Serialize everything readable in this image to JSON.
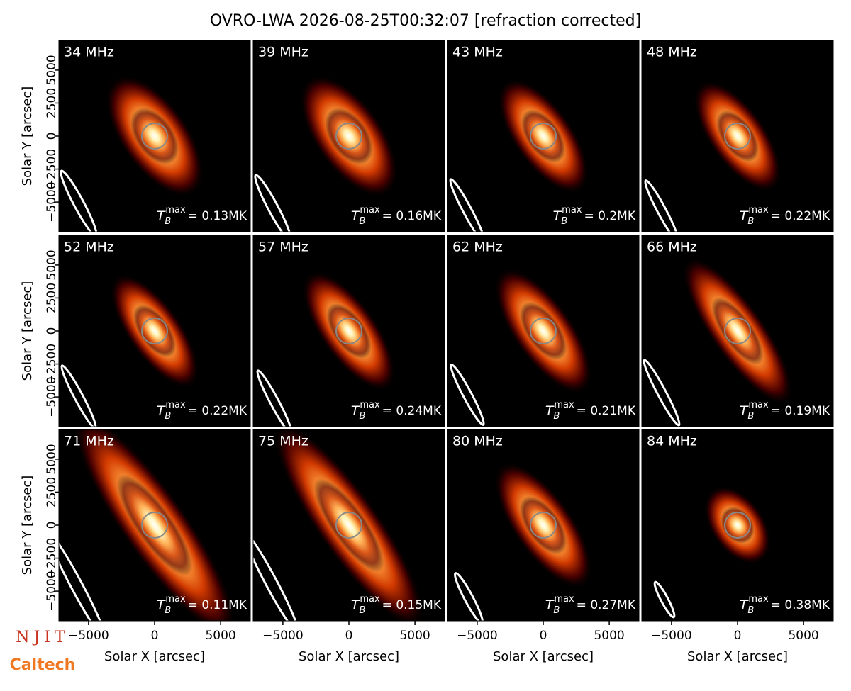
{
  "title": "OVRO-LWA 2026-08-25T00:32:07 [refraction corrected]",
  "logos": [
    "NJIT",
    "Caltech"
  ],
  "chart_data": [
    {
      "type": "image",
      "title": "34 MHz",
      "annotation": {
        "symbol": "T",
        "sub": "B",
        "sup": "max",
        "text": "= 0.13MK"
      },
      "xlim": [
        -7250,
        7250
      ],
      "ylim": [
        -7250,
        7250
      ],
      "ylabel": "Solar Y [arcsec]",
      "yticks": [
        {
          "value": 5000,
          "label": "5000"
        },
        {
          "value": 2500,
          "label": "2500"
        },
        {
          "value": 0,
          "label": "0"
        },
        {
          "value": -2500,
          "label": "−2500"
        },
        {
          "value": -5000,
          "label": "−5000"
        }
      ]
    },
    {
      "type": "image",
      "title": "39 MHz",
      "annotation": {
        "symbol": "T",
        "sub": "B",
        "sup": "max",
        "text": "= 0.16MK"
      },
      "xlim": [
        -7250,
        7250
      ],
      "ylim": [
        -7250,
        7250
      ]
    },
    {
      "type": "image",
      "title": "43 MHz",
      "annotation": {
        "symbol": "T",
        "sub": "B",
        "sup": "max",
        "text": "= 0.2MK"
      },
      "xlim": [
        -7250,
        7250
      ],
      "ylim": [
        -7250,
        7250
      ]
    },
    {
      "type": "image",
      "title": "48 MHz",
      "annotation": {
        "symbol": "T",
        "sub": "B",
        "sup": "max",
        "text": "= 0.22MK"
      },
      "xlim": [
        -7250,
        7250
      ],
      "ylim": [
        -7250,
        7250
      ]
    },
    {
      "type": "image",
      "title": "52 MHz",
      "annotation": {
        "symbol": "T",
        "sub": "B",
        "sup": "max",
        "text": "= 0.22MK"
      },
      "xlim": [
        -7250,
        7250
      ],
      "ylim": [
        -7250,
        7250
      ],
      "ylabel": "Solar Y [arcsec]",
      "yticks": [
        {
          "value": 5000,
          "label": "5000"
        },
        {
          "value": 2500,
          "label": "2500"
        },
        {
          "value": 0,
          "label": "0"
        },
        {
          "value": -2500,
          "label": "−2500"
        },
        {
          "value": -5000,
          "label": "−5000"
        }
      ]
    },
    {
      "type": "image",
      "title": "57 MHz",
      "annotation": {
        "symbol": "T",
        "sub": "B",
        "sup": "max",
        "text": "= 0.24MK"
      },
      "xlim": [
        -7250,
        7250
      ],
      "ylim": [
        -7250,
        7250
      ]
    },
    {
      "type": "image",
      "title": "62 MHz",
      "annotation": {
        "symbol": "T",
        "sub": "B",
        "sup": "max",
        "text": "= 0.21MK"
      },
      "xlim": [
        -7250,
        7250
      ],
      "ylim": [
        -7250,
        7250
      ]
    },
    {
      "type": "image",
      "title": "66 MHz",
      "annotation": {
        "symbol": "T",
        "sub": "B",
        "sup": "max",
        "text": "= 0.19MK"
      },
      "xlim": [
        -7250,
        7250
      ],
      "ylim": [
        -7250,
        7250
      ]
    },
    {
      "type": "image",
      "title": "71 MHz",
      "annotation": {
        "symbol": "T",
        "sub": "B",
        "sup": "max",
        "text": "= 0.11MK"
      },
      "xlim": [
        -7250,
        7250
      ],
      "ylim": [
        -7250,
        7250
      ],
      "ylabel": "Solar Y [arcsec]",
      "yticks": [
        {
          "value": 5000,
          "label": "5000"
        },
        {
          "value": 2500,
          "label": "2500"
        },
        {
          "value": 0,
          "label": "0"
        },
        {
          "value": -2500,
          "label": "−2500"
        },
        {
          "value": -5000,
          "label": "−5000"
        }
      ],
      "xlabel": "Solar X [arcsec]",
      "xticks": [
        {
          "value": -5000,
          "label": "−5000"
        },
        {
          "value": 0,
          "label": "0"
        },
        {
          "value": 5000,
          "label": "5000"
        }
      ]
    },
    {
      "type": "image",
      "title": "75 MHz",
      "annotation": {
        "symbol": "T",
        "sub": "B",
        "sup": "max",
        "text": "= 0.15MK"
      },
      "xlim": [
        -7250,
        7250
      ],
      "ylim": [
        -7250,
        7250
      ],
      "xlabel": "Solar X [arcsec]",
      "xticks": [
        {
          "value": -5000,
          "label": "−5000"
        },
        {
          "value": 0,
          "label": "0"
        },
        {
          "value": 5000,
          "label": "5000"
        }
      ]
    },
    {
      "type": "image",
      "title": "80 MHz",
      "annotation": {
        "symbol": "T",
        "sub": "B",
        "sup": "max",
        "text": "= 0.27MK"
      },
      "xlim": [
        -7250,
        7250
      ],
      "ylim": [
        -7250,
        7250
      ],
      "xlabel": "Solar X [arcsec]",
      "xticks": [
        {
          "value": -5000,
          "label": "−5000"
        },
        {
          "value": 0,
          "label": "0"
        },
        {
          "value": 5000,
          "label": "5000"
        }
      ]
    },
    {
      "type": "image",
      "title": "84 MHz",
      "annotation": {
        "symbol": "T",
        "sub": "B",
        "sup": "max",
        "text": "= 0.38MK"
      },
      "xlim": [
        -7250,
        7250
      ],
      "ylim": [
        -7250,
        7250
      ],
      "xlabel": "Solar X [arcsec]",
      "xticks": [
        {
          "value": -5000,
          "label": "−5000"
        },
        {
          "value": 0,
          "label": "0"
        },
        {
          "value": 5000,
          "label": "5000"
        }
      ]
    }
  ]
}
